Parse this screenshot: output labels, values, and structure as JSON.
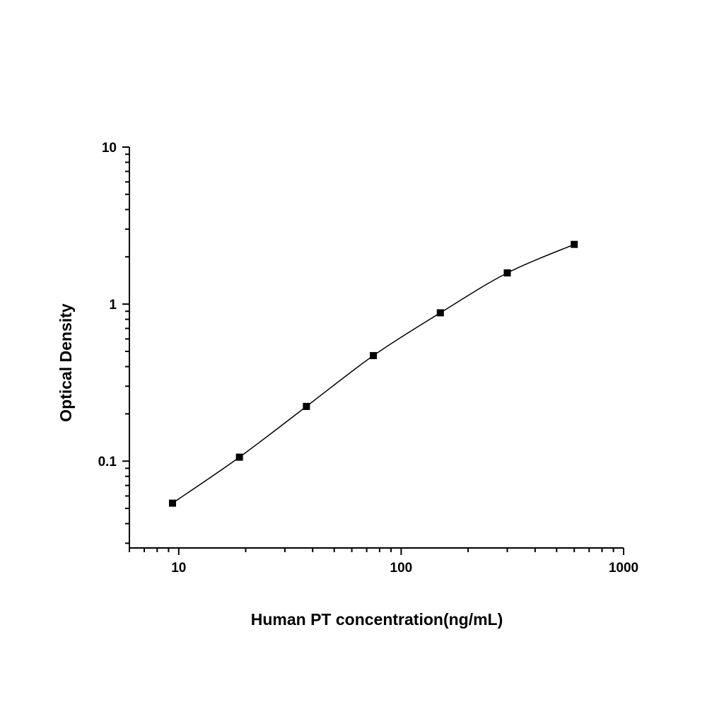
{
  "chart_data": {
    "type": "scatter",
    "xlabel": "Human PT concentration(ng/mL)",
    "ylabel": "Optical Density",
    "xscale": "log",
    "yscale": "log",
    "xlim": [
      6,
      1000
    ],
    "ylim": [
      0.028,
      10
    ],
    "x_ticks": [
      10,
      100,
      1000
    ],
    "x_tick_labels": [
      "10",
      "100",
      "1000"
    ],
    "y_ticks": [
      0.1,
      1,
      10
    ],
    "y_tick_labels": [
      "0.1",
      "1",
      "10"
    ],
    "grid": false,
    "legend": "none",
    "series": [
      {
        "marker": "square",
        "fit_line": true,
        "x": [
          9.375,
          18.75,
          37.5,
          75,
          150,
          300,
          600
        ],
        "y": [
          0.054,
          0.106,
          0.223,
          0.47,
          0.88,
          1.58,
          2.4
        ]
      }
    ],
    "colors": {
      "axis": "#000000",
      "marker": "#000000",
      "line": "#000000"
    }
  }
}
